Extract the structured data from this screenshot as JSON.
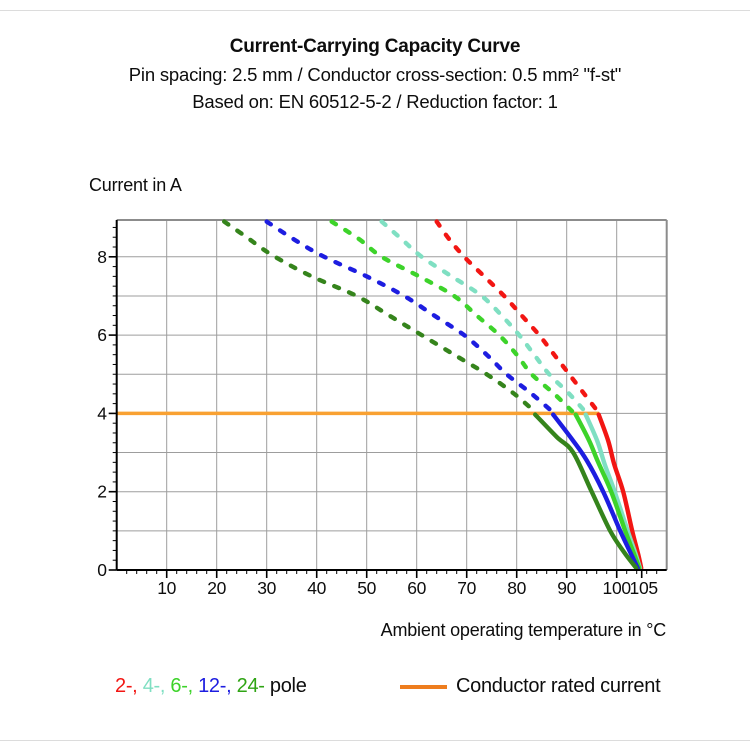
{
  "header": {
    "title": "Current-Carrying Capacity Curve",
    "subtitle_spec": "Pin spacing: 2.5 mm / Conductor cross-section: 0.5 mm² \"f-st\"",
    "subtitle_basis": "Based on: EN 60512-5-2 / Reduction factor: 1"
  },
  "chart_data": {
    "type": "line",
    "title": "Current-Carrying Capacity Curve",
    "subtitle1": "Pin spacing: 2.5 mm / Conductor cross-section: 0.5 mm² \"f-st\"",
    "subtitle2": "Based on: EN 60512-5-2 / Reduction factor: 1",
    "xlabel": "Ambient operating temperature in °C",
    "ylabel": "Current in A",
    "xlim": [
      0,
      110
    ],
    "ylim": [
      0,
      8.94
    ],
    "x_ticks": [
      10,
      20,
      30,
      40,
      50,
      60,
      70,
      80,
      90,
      100,
      105
    ],
    "y_ticks": [
      0,
      2,
      4,
      6,
      8
    ],
    "x_minor_step": 2,
    "y_minor_step": 0.25,
    "x_grid_step": 10,
    "y_grid_step": 1,
    "grid": true,
    "grid_color": "#9d9d9d",
    "frame_color": "#8c8c8c",
    "axis_color": "#000000",
    "rated_current": {
      "label": "Conductor rated current",
      "value": 4,
      "x_start": 0,
      "x_end": 96.5,
      "color": "#f9a132",
      "legend_color": "#ee7d1e"
    },
    "legend_suffix": "pole",
    "series": [
      {
        "name": "2-pole",
        "legend": "2-",
        "color": "#f21613",
        "derating_dashed": [
          [
            64,
            8.9
          ],
          [
            66.5,
            8.45
          ],
          [
            69.5,
            8.0
          ],
          [
            73.5,
            7.5
          ],
          [
            77.5,
            7.0
          ],
          [
            81,
            6.5
          ],
          [
            84.5,
            6.0
          ],
          [
            87.5,
            5.5
          ],
          [
            90.5,
            5.0
          ],
          [
            93.5,
            4.5
          ],
          [
            96.5,
            4.0
          ]
        ],
        "solid": [
          [
            96.4,
            3.97
          ],
          [
            98.3,
            3.3
          ],
          [
            99.5,
            2.7
          ],
          [
            101.3,
            2.0
          ],
          [
            103.1,
            1.0
          ],
          [
            104.3,
            0.4
          ],
          [
            104.9,
            0.05
          ]
        ]
      },
      {
        "name": "4-pole",
        "legend": "4-",
        "color": "#7fdfc2",
        "derating_dashed": [
          [
            53,
            8.9
          ],
          [
            57,
            8.45
          ],
          [
            61,
            8.0
          ],
          [
            67,
            7.5
          ],
          [
            73,
            7.0
          ],
          [
            77,
            6.5
          ],
          [
            80.5,
            6.0
          ],
          [
            83.5,
            5.5
          ],
          [
            86.5,
            5.0
          ],
          [
            90.5,
            4.5
          ],
          [
            94,
            4.0
          ]
        ],
        "solid": [
          [
            93.8,
            3.97
          ],
          [
            96.1,
            3.3
          ],
          [
            97.6,
            2.7
          ],
          [
            99.6,
            2.0
          ],
          [
            102.2,
            1.0
          ],
          [
            103.8,
            0.4
          ],
          [
            104.65,
            0.05
          ]
        ]
      },
      {
        "name": "6-pole",
        "legend": "6-",
        "color": "#3dd32a",
        "derating_dashed": [
          [
            43,
            8.9
          ],
          [
            48.5,
            8.45
          ],
          [
            53,
            8.0
          ],
          [
            60.5,
            7.5
          ],
          [
            67.5,
            7.0
          ],
          [
            72,
            6.5
          ],
          [
            76.5,
            6.0
          ],
          [
            80,
            5.5
          ],
          [
            83,
            5.0
          ],
          [
            87.5,
            4.5
          ],
          [
            91.5,
            4.0
          ]
        ],
        "solid": [
          [
            91.8,
            3.97
          ],
          [
            94.5,
            3.3
          ],
          [
            96.3,
            2.75
          ],
          [
            98.9,
            2.0
          ],
          [
            101.7,
            1.0
          ],
          [
            103.5,
            0.4
          ],
          [
            104.5,
            0.05
          ]
        ]
      },
      {
        "name": "12-pole",
        "legend": "12-",
        "color": "#1d1de0",
        "derating_dashed": [
          [
            30,
            8.9
          ],
          [
            36,
            8.4
          ],
          [
            41.5,
            8.0
          ],
          [
            50,
            7.5
          ],
          [
            57.5,
            7.0
          ],
          [
            63.5,
            6.5
          ],
          [
            69.5,
            6.0
          ],
          [
            74,
            5.5
          ],
          [
            78,
            5.0
          ],
          [
            83,
            4.5
          ],
          [
            87.5,
            4.0
          ]
        ],
        "solid": [
          [
            87.3,
            3.97
          ],
          [
            91,
            3.35
          ],
          [
            94,
            2.8
          ],
          [
            97.3,
            2.0
          ],
          [
            100.7,
            1.0
          ],
          [
            102.9,
            0.4
          ],
          [
            104.2,
            0.05
          ]
        ]
      },
      {
        "name": "24-pole",
        "legend": "24-",
        "color": "#35841c",
        "legend_color": "#2fa414",
        "derating_dashed": [
          [
            21.5,
            8.9
          ],
          [
            26,
            8.5
          ],
          [
            31,
            8.05
          ],
          [
            39,
            7.5
          ],
          [
            48,
            7.0
          ],
          [
            54.5,
            6.5
          ],
          [
            61,
            6.0
          ],
          [
            67.5,
            5.5
          ],
          [
            74,
            5.0
          ],
          [
            79.5,
            4.5
          ],
          [
            84,
            4.0
          ]
        ],
        "solid": [
          [
            83.7,
            3.97
          ],
          [
            88,
            3.4
          ],
          [
            91.3,
            3.0
          ],
          [
            95,
            2.0
          ],
          [
            98.7,
            1.0
          ],
          [
            101.5,
            0.45
          ],
          [
            103.9,
            0.05
          ]
        ]
      }
    ],
    "legend_order": [
      "2-pole",
      "4-pole",
      "6-pole",
      "12-pole",
      "24-pole"
    ],
    "legend_position": "bottom"
  }
}
